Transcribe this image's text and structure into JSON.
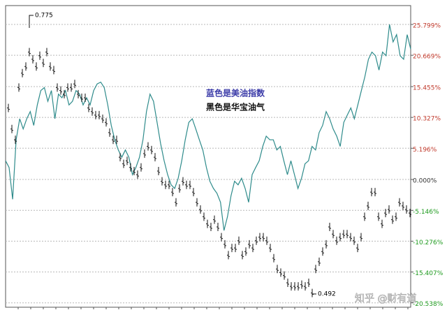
{
  "chart_data": {
    "type": "line",
    "annotations": [
      "0.775",
      "0.492",
      "蓝色是美油指数",
      "黑色是华宝油气"
    ],
    "watermark": "知乎 @财有道",
    "ylim": [
      -21.27,
      28.94
    ],
    "yticks": [
      {
        "value": 25.799,
        "label": "25.799%"
      },
      {
        "value": 20.669,
        "label": "20.669%"
      },
      {
        "value": 15.455,
        "label": "15.455%"
      },
      {
        "value": 10.327,
        "label": "10.327%"
      },
      {
        "value": 5.196,
        "label": "5.196%"
      },
      {
        "value": 0,
        "label": "0.000%"
      },
      {
        "value": -5.146,
        "label": "-5.146%"
      },
      {
        "value": -10.276,
        "label": "-10.276%"
      },
      {
        "value": -15.407,
        "label": "-15.407%"
      },
      {
        "value": -20.538,
        "label": "-20.538%"
      }
    ],
    "grid": true,
    "series": [
      {
        "name": "蓝色是美油指数",
        "color": "#2e8b8b",
        "style": "line",
        "values": [
          3.1,
          2.0,
          -3.3,
          6.6,
          10.1,
          8.4,
          10.1,
          11.3,
          9.0,
          12.4,
          14.8,
          15.3,
          13.0,
          14.8,
          10.1,
          14.2,
          13.6,
          14.8,
          12.4,
          13.0,
          14.8,
          14.2,
          12.4,
          13.6,
          12.4,
          14.8,
          15.9,
          16.2,
          15.3,
          12.4,
          9.0,
          6.6,
          4.9,
          3.7,
          4.9,
          3.7,
          0.8,
          2.0,
          3.7,
          6.6,
          11.3,
          14.2,
          13.0,
          9.5,
          6.0,
          3.1,
          0.8,
          -0.9,
          -1.5,
          0.2,
          3.1,
          6.6,
          9.5,
          10.1,
          8.4,
          6.6,
          4.9,
          2.0,
          -0.3,
          -1.5,
          -2.3,
          -3.8,
          -8.5,
          -6.2,
          -2.7,
          -0.3,
          -0.9,
          0.2,
          -1.5,
          -3.8,
          0.8,
          2.0,
          3.1,
          5.5,
          7.2,
          6.6,
          6.6,
          4.9,
          5.5,
          3.1,
          0.8,
          3.1,
          0.8,
          -1.5,
          0.2,
          2.6,
          3.1,
          5.5,
          4.9,
          7.8,
          9.0,
          11.3,
          10.1,
          8.4,
          7.2,
          5.5,
          9.5,
          10.7,
          11.9,
          10.1,
          12.4,
          14.8,
          17.1,
          20.0,
          21.2,
          20.6,
          18.2,
          21.2,
          20.6,
          25.8,
          22.9,
          24.1,
          20.6,
          20.0,
          24.1,
          21.7
        ]
      },
      {
        "name": "黑色是华宝油气",
        "color": "#111111",
        "style": "bars",
        "values": [
          11.9,
          8.4,
          6.6,
          15.3,
          17.7,
          18.8,
          21.2,
          20.0,
          18.8,
          20.6,
          19.4,
          21.2,
          18.8,
          18.2,
          15.3,
          14.8,
          14.2,
          15.3,
          15.3,
          15.9,
          14.2,
          13.6,
          13.6,
          11.9,
          11.3,
          10.7,
          10.7,
          10.1,
          9.5,
          7.8,
          6.6,
          6.6,
          3.7,
          2.6,
          3.1,
          2.0,
          1.4,
          0.8,
          2.0,
          4.3,
          5.5,
          4.9,
          3.7,
          1.4,
          -0.3,
          -0.9,
          -0.9,
          -2.1,
          -3.8,
          -1.5,
          -0.3,
          -0.9,
          -0.9,
          -2.1,
          -3.8,
          -5.0,
          -6.2,
          -7.4,
          -7.9,
          -6.7,
          -7.9,
          -9.6,
          -10.8,
          -12.6,
          -11.4,
          -11.4,
          -10.2,
          -12.6,
          -12.0,
          -10.8,
          -11.4,
          -10.2,
          -9.6,
          -9.6,
          -10.2,
          -11.4,
          -13.1,
          -14.9,
          -15.5,
          -16.0,
          -17.2,
          -17.8,
          -17.8,
          -17.8,
          -17.5,
          -17.8,
          -17.2,
          -18.9,
          -14.9,
          -13.7,
          -12.0,
          -10.8,
          -7.9,
          -9.1,
          -10.2,
          -9.6,
          -9.1,
          -9.1,
          -9.6,
          -10.2,
          -11.4,
          -9.6,
          -6.2,
          -4.4,
          -2.1,
          -2.1,
          -6.2,
          -7.4,
          -5.6,
          -5.0,
          -6.7,
          -6.2,
          -3.8,
          -4.4,
          -5.0,
          -5.6
        ]
      }
    ]
  }
}
